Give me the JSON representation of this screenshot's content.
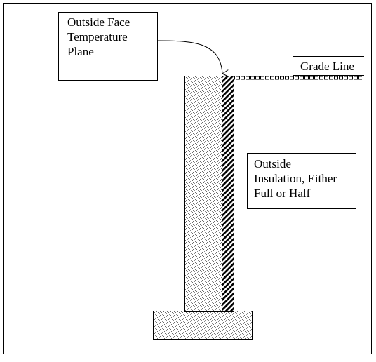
{
  "diagram": {
    "labels": {
      "outside_face": [
        "Outside Face",
        "Temperature",
        "Plane"
      ],
      "grade_line": "Grade Line",
      "insulation": [
        "Outside",
        "Insulation, Either",
        "Full or Half"
      ]
    },
    "colors": {
      "stroke": "#000000",
      "background": "#ffffff",
      "stipple": "#6b6b6b"
    }
  }
}
